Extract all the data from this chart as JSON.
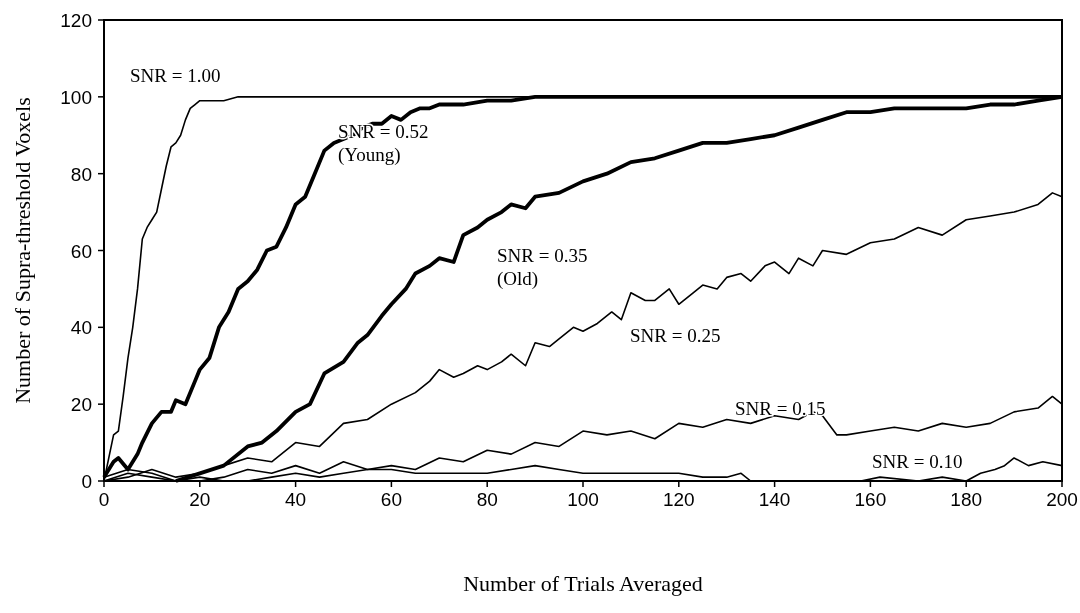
{
  "chart_data": {
    "type": "line",
    "xlabel": "Number of Trials Averaged",
    "ylabel": "Number of Supra-threshold Voxels",
    "xlim": [
      0,
      200
    ],
    "ylim": [
      0,
      120
    ],
    "xticks": [
      0,
      20,
      40,
      60,
      80,
      100,
      120,
      140,
      160,
      180,
      200
    ],
    "yticks": [
      0,
      20,
      40,
      60,
      80,
      100,
      120
    ],
    "grid": false,
    "marker": "none",
    "line_style": "solid",
    "series": [
      {
        "name": "SNR = 1.00",
        "color": "#000000",
        "x": [
          0,
          1,
          2,
          3,
          4,
          5,
          6,
          7,
          8,
          9,
          10,
          11,
          12,
          13,
          14,
          15,
          16,
          17,
          18,
          19,
          20,
          22,
          25,
          28,
          30,
          200
        ],
        "values": [
          0,
          6,
          12,
          13,
          22,
          32,
          40,
          50,
          63,
          66,
          68,
          70,
          76,
          82,
          87,
          88,
          90,
          94,
          97,
          98,
          99,
          99,
          99,
          100,
          100,
          100
        ]
      },
      {
        "name": "SNR = 0.52\n(Young)",
        "color": "#000000",
        "x": [
          0,
          2,
          3,
          5,
          7,
          8,
          10,
          12,
          14,
          15,
          17,
          19,
          20,
          22,
          24,
          26,
          28,
          30,
          32,
          34,
          36,
          38,
          40,
          42,
          44,
          46,
          48,
          50,
          52,
          54,
          56,
          58,
          60,
          62,
          64,
          66,
          68,
          70,
          75,
          80,
          85,
          90,
          95,
          200
        ],
        "values": [
          1,
          5,
          6,
          3,
          7,
          10,
          15,
          18,
          18,
          21,
          20,
          26,
          29,
          32,
          40,
          44,
          50,
          52,
          55,
          60,
          61,
          66,
          72,
          74,
          80,
          86,
          88,
          89,
          90,
          92,
          93,
          93,
          95,
          94,
          96,
          97,
          97,
          98,
          98,
          99,
          99,
          100,
          100,
          100
        ]
      },
      {
        "name": "SNR = 0.35\n(Old)",
        "color": "#000000",
        "x": [
          15,
          20,
          25,
          30,
          33,
          36,
          40,
          43,
          46,
          50,
          53,
          55,
          58,
          60,
          63,
          65,
          68,
          70,
          73,
          75,
          78,
          80,
          83,
          85,
          88,
          90,
          95,
          100,
          105,
          110,
          115,
          120,
          125,
          130,
          135,
          140,
          145,
          150,
          155,
          160,
          165,
          170,
          175,
          180,
          185,
          190,
          195,
          200
        ],
        "values": [
          0,
          2,
          4,
          9,
          10,
          13,
          18,
          20,
          28,
          31,
          36,
          38,
          43,
          46,
          50,
          54,
          56,
          58,
          57,
          64,
          66,
          68,
          70,
          72,
          71,
          74,
          75,
          78,
          80,
          83,
          84,
          86,
          88,
          88,
          89,
          90,
          92,
          94,
          96,
          96,
          97,
          97,
          97,
          97,
          98,
          98,
          99,
          100
        ]
      },
      {
        "name": "SNR = 0.25",
        "color": "#000000",
        "x": [
          0,
          5,
          10,
          15,
          20,
          25,
          30,
          35,
          40,
          45,
          50,
          55,
          60,
          65,
          68,
          70,
          73,
          75,
          78,
          80,
          83,
          85,
          88,
          90,
          93,
          95,
          98,
          100,
          103,
          106,
          108,
          110,
          113,
          115,
          118,
          120,
          123,
          125,
          128,
          130,
          133,
          135,
          138,
          140,
          143,
          145,
          148,
          150,
          155,
          160,
          165,
          170,
          175,
          180,
          185,
          190,
          195,
          198,
          200
        ],
        "values": [
          0,
          1,
          3,
          1,
          2,
          4,
          6,
          5,
          10,
          9,
          15,
          16,
          20,
          23,
          26,
          29,
          27,
          28,
          30,
          29,
          31,
          33,
          30,
          36,
          35,
          37,
          40,
          39,
          41,
          44,
          42,
          49,
          47,
          47,
          50,
          46,
          49,
          51,
          50,
          53,
          54,
          52,
          56,
          57,
          54,
          58,
          56,
          60,
          59,
          62,
          63,
          66,
          64,
          68,
          69,
          70,
          72,
          75,
          74
        ]
      },
      {
        "name": "SNR = 0.15",
        "color": "#000000",
        "x": [
          0,
          5,
          10,
          15,
          20,
          25,
          30,
          35,
          40,
          45,
          50,
          55,
          60,
          65,
          70,
          75,
          80,
          85,
          90,
          95,
          100,
          105,
          110,
          115,
          120,
          125,
          130,
          135,
          140,
          145,
          148,
          150,
          153,
          155,
          160,
          165,
          170,
          175,
          180,
          185,
          190,
          195,
          198,
          200
        ],
        "values": [
          1,
          3,
          2,
          0,
          0,
          1,
          3,
          2,
          4,
          2,
          5,
          3,
          4,
          3,
          6,
          5,
          8,
          7,
          10,
          9,
          13,
          12,
          13,
          11,
          15,
          14,
          16,
          15,
          17,
          16,
          18,
          17,
          12,
          12,
          13,
          14,
          13,
          15,
          14,
          15,
          18,
          19,
          22,
          20
        ]
      },
      {
        "name": "SNR = 0.10",
        "color": "#000000",
        "x": [
          0,
          5,
          10,
          15,
          20,
          25,
          30,
          35,
          40,
          45,
          50,
          55,
          60,
          65,
          70,
          75,
          80,
          85,
          90,
          95,
          100,
          105,
          110,
          115,
          120,
          125,
          130,
          133,
          135,
          140,
          150,
          158,
          162,
          170,
          175,
          180,
          183,
          186,
          188,
          190,
          193,
          196,
          200
        ],
        "values": [
          0,
          2,
          1,
          0,
          1,
          0,
          0,
          1,
          2,
          1,
          2,
          3,
          3,
          2,
          2,
          2,
          2,
          3,
          4,
          3,
          2,
          2,
          2,
          2,
          2,
          1,
          1,
          2,
          0,
          0,
          0,
          0,
          1,
          0,
          1,
          0,
          2,
          3,
          4,
          6,
          4,
          5,
          4
        ]
      }
    ]
  }
}
